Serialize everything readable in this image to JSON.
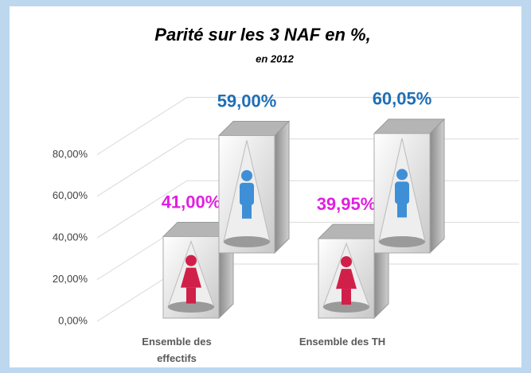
{
  "chart_data": {
    "type": "bar3d",
    "title": "Parité sur les 3 NAF en %,",
    "subtitle": "en 2012",
    "categories": [
      "Ensemble des effectifs",
      "Ensemble des TH"
    ],
    "series": [
      {
        "color": "#e020e0",
        "values": [
          41.0,
          39.95
        ],
        "value_labels": [
          "41,00%",
          "39,95%"
        ]
      },
      {
        "color": "#1f6fb5",
        "values": [
          59.0,
          60.05
        ],
        "value_labels": [
          "59,00%",
          "60,05%"
        ]
      }
    ],
    "ylim": [
      0,
      100
    ],
    "yticks": [
      {
        "value": 0,
        "label": "0,00%"
      },
      {
        "value": 20,
        "label": "20,00%"
      },
      {
        "value": 40,
        "label": "40,00%"
      },
      {
        "value": 60,
        "label": "60,00%"
      },
      {
        "value": 80,
        "label": "80,00%"
      }
    ],
    "grid": true
  }
}
